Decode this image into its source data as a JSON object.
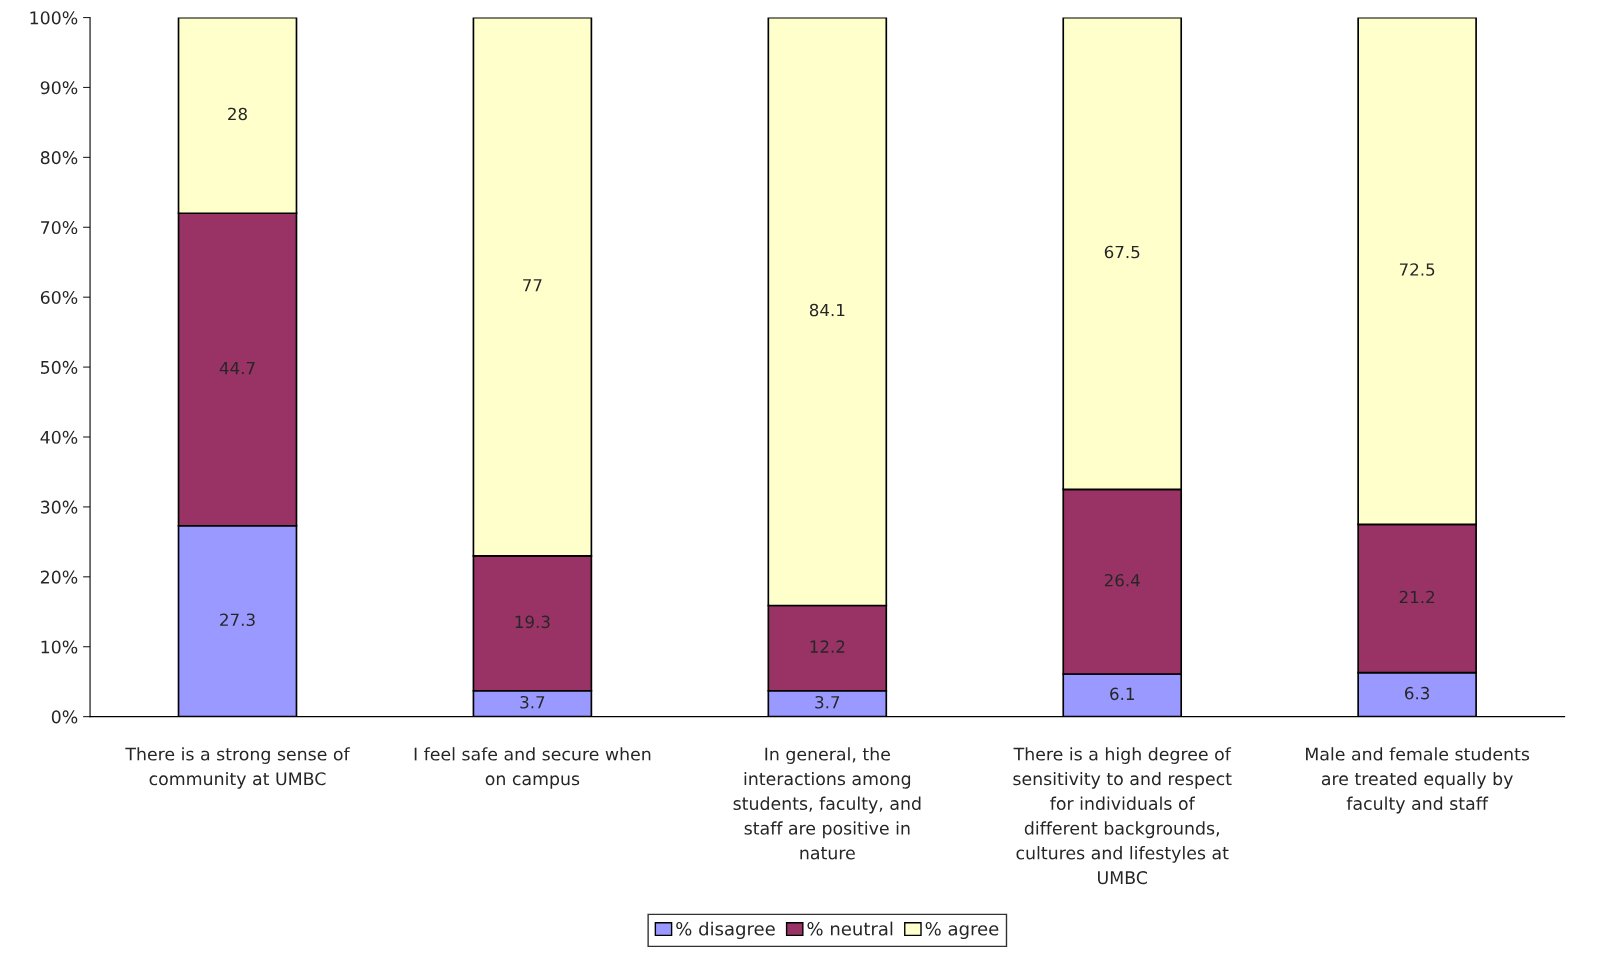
{
  "chart_data": {
    "type": "bar",
    "stacked": true,
    "data_labels": true,
    "categories": [
      "There is a strong sense of community at UMBC",
      "I feel safe and secure when on campus",
      "In general, the interactions among students, faculty, and staff are positive in nature",
      "There is a high degree of sensitivity to and respect for individuals of different backgrounds, cultures and lifestyles at UMBC",
      "Male and female students are treated equally by faculty and staff"
    ],
    "series": [
      {
        "name": "% disagree",
        "color": "#9999ff",
        "values": [
          27.3,
          3.7,
          3.7,
          6.1,
          6.3
        ]
      },
      {
        "name": "% neutral",
        "color": "#993366",
        "values": [
          44.7,
          19.3,
          12.2,
          26.4,
          21.2
        ]
      },
      {
        "name": "% agree",
        "color": "#ffffcc",
        "values": [
          28,
          77,
          84.1,
          67.5,
          72.5
        ]
      }
    ],
    "ylim": [
      0,
      100
    ],
    "yticks": [
      {
        "value": 0,
        "label": "0%"
      },
      {
        "value": 10,
        "label": "10%"
      },
      {
        "value": 20,
        "label": "20%"
      },
      {
        "value": 30,
        "label": "30%"
      },
      {
        "value": 40,
        "label": "40%"
      },
      {
        "value": 50,
        "label": "50%"
      },
      {
        "value": 60,
        "label": "60%"
      },
      {
        "value": 70,
        "label": "70%"
      },
      {
        "value": 80,
        "label": "80%"
      },
      {
        "value": 90,
        "label": "90%"
      },
      {
        "value": 100,
        "label": "100%"
      }
    ],
    "grid": false,
    "legend": "bottom"
  }
}
